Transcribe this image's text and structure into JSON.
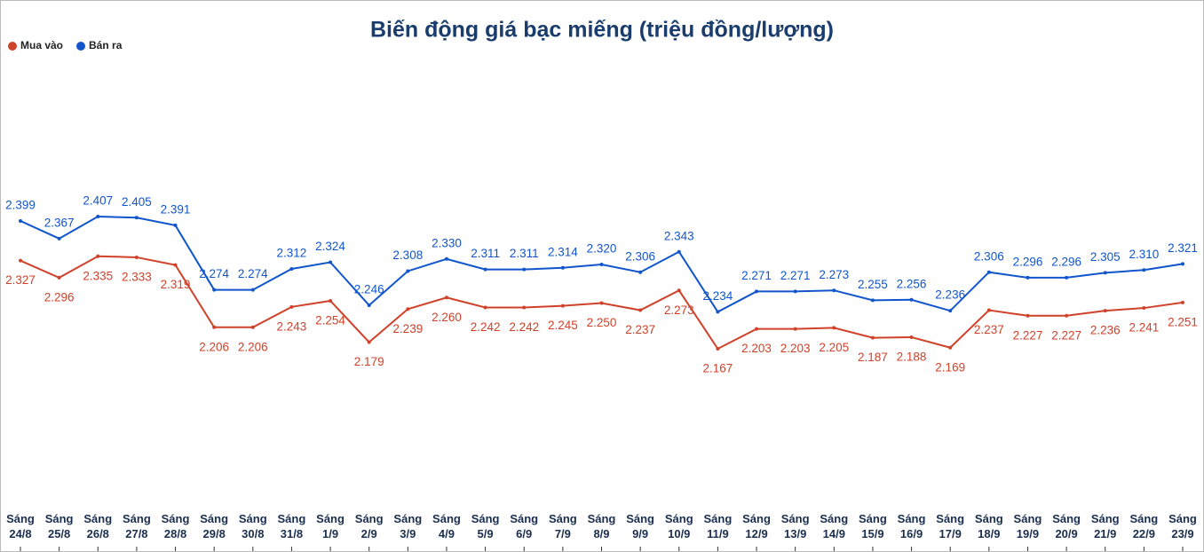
{
  "chart_data": {
    "type": "line",
    "title": "Biến động giá bạc miếng (triệu đồng/lượng)",
    "categories": [
      "Sáng 24/8",
      "Sáng 25/8",
      "Sáng 26/8",
      "Sáng 27/8",
      "Sáng 28/8",
      "Sáng 29/8",
      "Sáng 30/8",
      "Sáng 31/8",
      "Sáng 1/9",
      "Sáng 2/9",
      "Sáng 3/9",
      "Sáng 4/9",
      "Sáng 5/9",
      "Sáng 6/9",
      "Sáng 7/9",
      "Sáng 8/9",
      "Sáng 9/9",
      "Sáng 10/9",
      "Sáng 11/9",
      "Sáng 12/9",
      "Sáng 13/9",
      "Sáng 14/9",
      "Sáng 15/9",
      "Sáng 16/9",
      "Sáng 17/9",
      "Sáng 18/9",
      "Sáng 19/9",
      "Sáng 20/9",
      "Sáng 21/9",
      "Sáng 22/9",
      "Sáng 23/9"
    ],
    "series": [
      {
        "name": "Mua vào",
        "color": "#d0412a",
        "values": [
          2.327,
          2.296,
          2.335,
          2.333,
          2.319,
          2.206,
          2.206,
          2.243,
          2.254,
          2.179,
          2.239,
          2.26,
          2.242,
          2.242,
          2.245,
          2.25,
          2.237,
          2.273,
          2.167,
          2.203,
          2.203,
          2.205,
          2.187,
          2.188,
          2.169,
          2.237,
          2.227,
          2.227,
          2.236,
          2.241,
          2.251
        ],
        "value_labels": [
          "2.327",
          "2.296",
          "2.335",
          "2.333",
          "2.319",
          "2.206",
          "2.206",
          "2.243",
          "2.254",
          "2.179",
          "2.239",
          "2.260",
          "2.242",
          "2.242",
          "2.245",
          "2.250",
          "2.237",
          "2.273",
          "2.167",
          "2.203",
          "2.203",
          "2.205",
          "2.187",
          "2.188",
          "2.169",
          "2.237",
          "2.227",
          "2.227",
          "2.236",
          "2.241",
          "2.251"
        ]
      },
      {
        "name": "Bán ra",
        "color": "#1155cc",
        "values": [
          2.399,
          2.367,
          2.407,
          2.405,
          2.391,
          2.274,
          2.274,
          2.312,
          2.324,
          2.246,
          2.308,
          2.33,
          2.311,
          2.311,
          2.314,
          2.32,
          2.306,
          2.343,
          2.234,
          2.271,
          2.271,
          2.273,
          2.255,
          2.256,
          2.236,
          2.306,
          2.296,
          2.296,
          2.305,
          2.31,
          2.321
        ],
        "value_labels": [
          "2.399",
          "2.367",
          "2.407",
          "2.405",
          "2.391",
          "2.274",
          "2.274",
          "2.312",
          "2.324",
          "2.246",
          "2.308",
          "2.330",
          "2.311",
          "2.311",
          "2.314",
          "2.320",
          "2.306",
          "2.343",
          "2.234",
          "2.271",
          "2.271",
          "2.273",
          "2.255",
          "2.256",
          "2.236",
          "2.306",
          "2.296",
          "2.296",
          "2.305",
          "2.310",
          "2.321"
        ]
      }
    ]
  }
}
